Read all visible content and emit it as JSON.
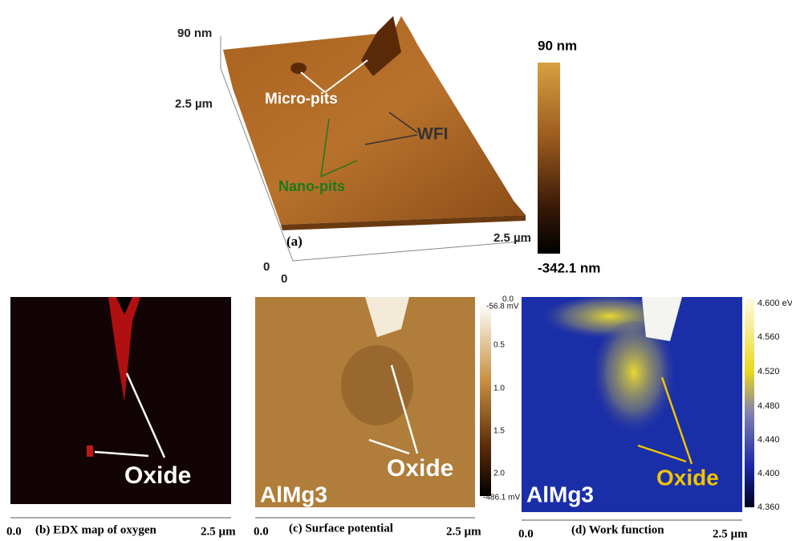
{
  "panel_a": {
    "z_top": "90 nm",
    "y_axis_end": "2.5 µm",
    "y_origin": "0",
    "x_origin": "0",
    "x_axis_end": "2.5 µm",
    "label": "(a)",
    "annotations": [
      "Micro-pits",
      "WFI",
      "Nano-pits"
    ],
    "colorbar": {
      "max": "90 nm",
      "min": "-342.1 nm"
    }
  },
  "panel_b": {
    "annotation": "Oxide",
    "axis_start": "0.0",
    "caption": "(b) EDX map of oxygen",
    "axis_end": "2.5 µm"
  },
  "panel_c": {
    "annotation": "Oxide",
    "material": "AlMg3",
    "axis_start": "0.0",
    "caption": "(c) Surface potential",
    "axis_end": "2.5 µm",
    "colorbar": [
      "-56.8 mV",
      "0.5",
      "1.0",
      "1.5",
      "2.0",
      "-486.1 mV"
    ]
  },
  "panel_d": {
    "annotation": "Oxide",
    "material": "AlMg3",
    "y_axis_start": "0.0",
    "axis_start": "0.0",
    "caption": "(d) Work function",
    "axis_end": "2.5 µm",
    "colorbar": [
      "4.600 eV",
      "4.560",
      "4.520",
      "4.480",
      "4.440",
      "4.400",
      "4.360"
    ]
  }
}
